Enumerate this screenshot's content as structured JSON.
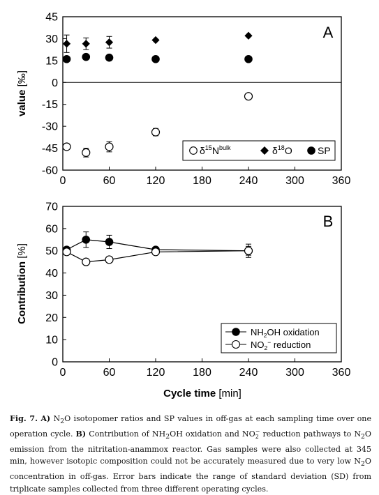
{
  "caption": {
    "label": "Fig. 7.",
    "part_a_label": "A)",
    "part_a_text_1": "N",
    "part_a_text_2": "O isotopomer ratios and SP values in off-gas at each sampling time over one operation cycle.",
    "part_b_label": "B)",
    "part_b_text_1": "Contribution of NH",
    "part_b_text_2": "OH oxidation and NO",
    "part_b_text_3": "reduction pathways to N",
    "part_b_text_4": "O emission from the nitritation-anammox reactor. Gas samples were also collected at 345 min, however isotopic composition could not be accurately measured due to very low N",
    "part_b_text_5": "O concentration in off-gas. Error bars indicate the range of standard deviation (SD) from triplicate samples collected from three different operating cycles.",
    "sub_2": "2",
    "sub_minus": "2",
    "sup_minus": "−"
  },
  "chart_data": [
    {
      "type": "scatter",
      "panel_letter": "A",
      "ylabel": "value",
      "ylabel_unit": "[‰]",
      "xlabel": "",
      "xlim": [
        0,
        360
      ],
      "ylim": [
        -60,
        45
      ],
      "x_ticks": [
        0,
        60,
        120,
        180,
        240,
        300,
        360
      ],
      "y_ticks": [
        45,
        30,
        15,
        0,
        -15,
        -30,
        -45,
        -60
      ],
      "legend_position": "bottom-right",
      "series": [
        {
          "name": "δ15Nbulk",
          "legend_parts": [
            "δ",
            "15",
            "N",
            "bulk"
          ],
          "marker": "open-circle",
          "points": [
            {
              "x": 5,
              "y": -44,
              "err": 0
            },
            {
              "x": 30,
              "y": -48,
              "err": 3
            },
            {
              "x": 60,
              "y": -44,
              "err": 3.5
            },
            {
              "x": 120,
              "y": -34,
              "err": 2.5
            },
            {
              "x": 240,
              "y": -9.5,
              "err": 0
            }
          ]
        },
        {
          "name": "δ18O",
          "legend_parts": [
            "δ",
            "18",
            "O",
            ""
          ],
          "marker": "diamond",
          "points": [
            {
              "x": 5,
              "y": 26.5,
              "err": 6
            },
            {
              "x": 30,
              "y": 26.5,
              "err": 4
            },
            {
              "x": 60,
              "y": 27.5,
              "err": 4
            },
            {
              "x": 120,
              "y": 29,
              "err": 0
            },
            {
              "x": 240,
              "y": 32,
              "err": 0
            }
          ]
        },
        {
          "name": "SP",
          "legend_parts": [
            "SP",
            "",
            "",
            ""
          ],
          "marker": "filled-circle",
          "points": [
            {
              "x": 5,
              "y": 16,
              "err": 0
            },
            {
              "x": 30,
              "y": 17.5,
              "err": 0
            },
            {
              "x": 60,
              "y": 17,
              "err": 0
            },
            {
              "x": 120,
              "y": 16,
              "err": 0
            },
            {
              "x": 240,
              "y": 16,
              "err": 0
            }
          ]
        }
      ]
    },
    {
      "type": "line",
      "panel_letter": "B",
      "ylabel": "Contribution",
      "ylabel_unit": "[%]",
      "xlabel": "Cycle time",
      "xlabel_unit": "[min]",
      "xlim": [
        0,
        360
      ],
      "ylim": [
        0,
        70
      ],
      "x_ticks": [
        0,
        60,
        120,
        180,
        240,
        300,
        360
      ],
      "y_ticks": [
        70,
        60,
        50,
        40,
        30,
        20,
        10,
        0
      ],
      "legend_position": "bottom-right",
      "series": [
        {
          "name": "NH2OH oxidation",
          "legend_parts": [
            "NH",
            "2",
            "OH oxidation",
            ""
          ],
          "marker": "filled-circle",
          "points": [
            {
              "x": 5,
              "y": 50.5,
              "err": 0
            },
            {
              "x": 30,
              "y": 55,
              "err": 3.5
            },
            {
              "x": 60,
              "y": 54,
              "err": 3
            },
            {
              "x": 120,
              "y": 50.5,
              "err": 0
            },
            {
              "x": 240,
              "y": 50,
              "err": 3
            }
          ]
        },
        {
          "name": "NO2- reduction",
          "legend_parts": [
            "NO",
            "2",
            "−",
            " reduction"
          ],
          "marker": "open-circle",
          "points": [
            {
              "x": 5,
              "y": 49.5,
              "err": 0
            },
            {
              "x": 30,
              "y": 45,
              "err": 0
            },
            {
              "x": 60,
              "y": 46,
              "err": 0
            },
            {
              "x": 120,
              "y": 49.5,
              "err": 0
            },
            {
              "x": 240,
              "y": 50,
              "err": 2
            }
          ]
        }
      ]
    }
  ]
}
